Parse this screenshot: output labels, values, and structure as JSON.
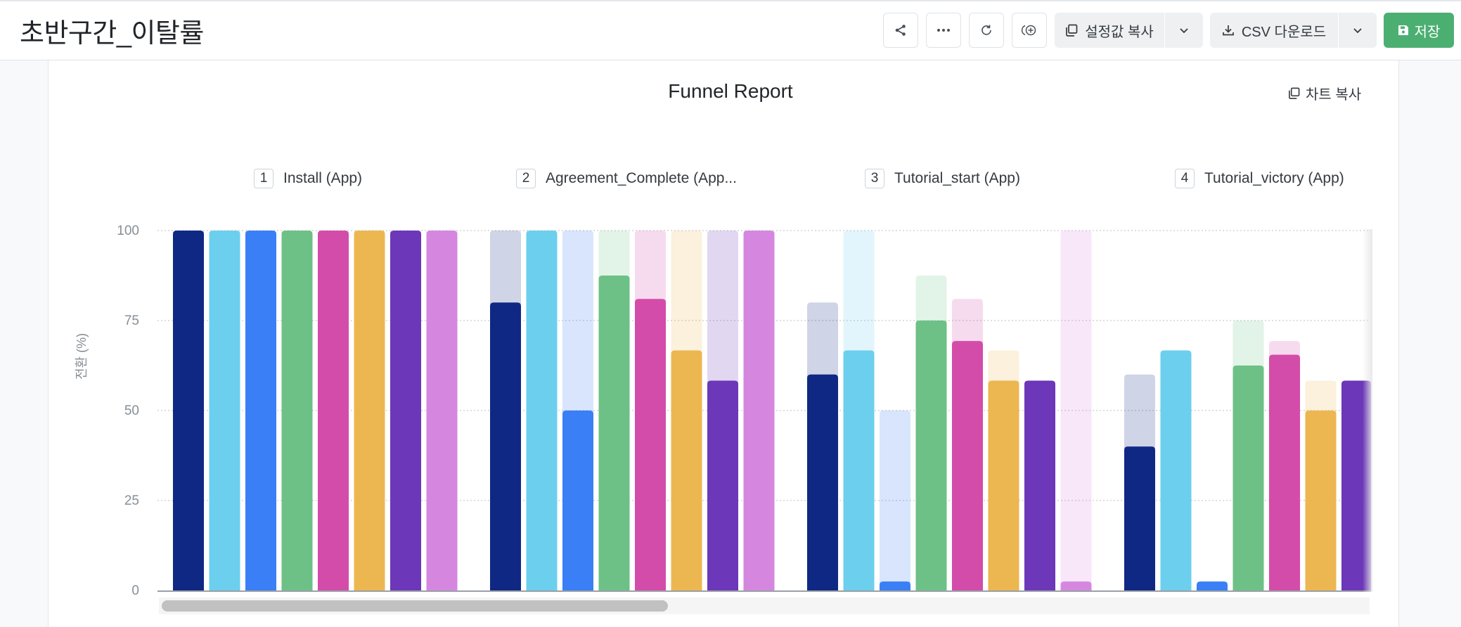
{
  "header": {
    "title": "초반구간_이탈률",
    "copy_settings_label": "설정값 복사",
    "csv_download_label": "CSV 다운로드",
    "save_label": "저장"
  },
  "chart_data": {
    "type": "bar",
    "title": "Funnel Report",
    "ylabel": "전환 (%)",
    "ylim": [
      0,
      100
    ],
    "yticks": [
      "100",
      "75",
      "50",
      "25",
      "0"
    ],
    "copy_chart_label": "차트 복사",
    "grid": true,
    "steps": [
      {
        "num": "1",
        "label": "Install (App)"
      },
      {
        "num": "2",
        "label": "Agreement_Complete (App..."
      },
      {
        "num": "3",
        "label": "Tutorial_start (App)"
      },
      {
        "num": "4",
        "label": "Tutorial_victory (App)"
      }
    ],
    "series": [
      {
        "color": "#0f2884",
        "values": [
          100,
          80,
          60,
          40
        ]
      },
      {
        "color": "#6ccfee",
        "values": [
          100,
          100,
          66.7,
          66.7
        ]
      },
      {
        "color": "#3a7ff5",
        "values": [
          100,
          50,
          2.5,
          2.5
        ]
      },
      {
        "color": "#6dc186",
        "values": [
          100,
          87.5,
          75,
          62.5
        ]
      },
      {
        "color": "#d44caa",
        "values": [
          100,
          81,
          69.3,
          65.5
        ]
      },
      {
        "color": "#ecb751",
        "values": [
          100,
          66.7,
          58.3,
          50
        ]
      },
      {
        "color": "#6c37b9",
        "values": [
          100,
          58.3,
          58.3,
          58.3
        ]
      },
      {
        "color": "#d587e0",
        "values": [
          100,
          100,
          2.5,
          0
        ]
      }
    ]
  }
}
